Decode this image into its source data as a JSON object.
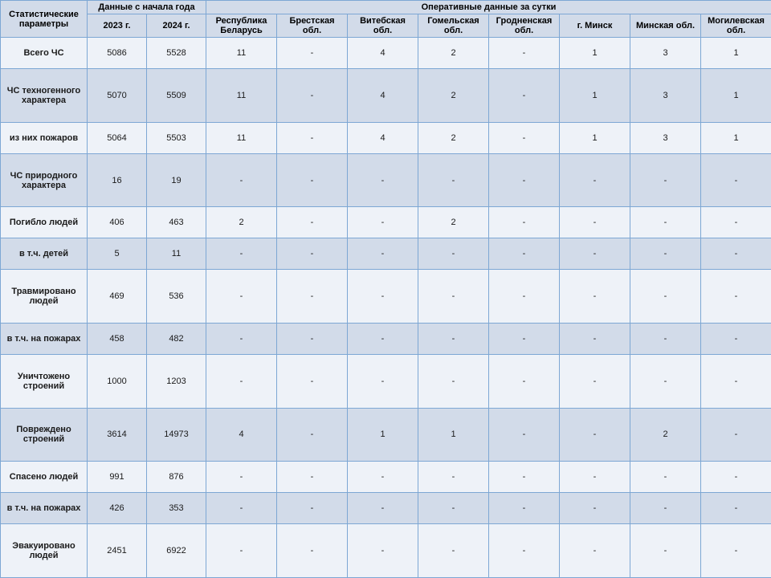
{
  "colors": {
    "border": "#7da7d4",
    "header_bg": "#d2dbe9",
    "row_even_bg": "#eef2f8",
    "row_odd_bg": "#d2dbe9",
    "text": "#1a1a1a"
  },
  "header": {
    "params": "Статистические параметры",
    "year_group": "Данные\nс начала года",
    "year_2023": "2023 г.",
    "year_2024": "2024 г.",
    "daily_group": "Оперативные данные за сутки",
    "regions": [
      "Республика Беларусь",
      "Брестская обл.",
      "Витебская обл.",
      "Гомельская обл.",
      "Гродненская обл.",
      "г. Минск",
      "Минская обл.",
      "Могилевская обл."
    ]
  },
  "rows": [
    {
      "label": "Всего ЧС",
      "y2023": "5086",
      "y2024": "5528",
      "d": [
        "11",
        "-",
        "4",
        "2",
        "-",
        "1",
        "3",
        "1"
      ]
    },
    {
      "label": "ЧС техногенного характера",
      "y2023": "5070",
      "y2024": "5509",
      "d": [
        "11",
        "-",
        "4",
        "2",
        "-",
        "1",
        "3",
        "1"
      ]
    },
    {
      "label": "из них пожаров",
      "y2023": "5064",
      "y2024": "5503",
      "d": [
        "11",
        "-",
        "4",
        "2",
        "-",
        "1",
        "3",
        "1"
      ]
    },
    {
      "label": "ЧС природного характера",
      "y2023": "16",
      "y2024": "19",
      "d": [
        "-",
        "-",
        "-",
        "-",
        "-",
        "-",
        "-",
        "-"
      ]
    },
    {
      "label": "Погибло людей",
      "y2023": "406",
      "y2024": "463",
      "d": [
        "2",
        "-",
        "-",
        "2",
        "-",
        "-",
        "-",
        "-"
      ]
    },
    {
      "label": "в т.ч. детей",
      "y2023": "5",
      "y2024": "11",
      "d": [
        "-",
        "-",
        "-",
        "-",
        "-",
        "-",
        "-",
        "-"
      ]
    },
    {
      "label": "Травмировано людей",
      "y2023": "469",
      "y2024": "536",
      "d": [
        "-",
        "-",
        "-",
        "-",
        "-",
        "-",
        "-",
        "-"
      ]
    },
    {
      "label": "в т.ч. на пожарах",
      "y2023": "458",
      "y2024": "482",
      "d": [
        "-",
        "-",
        "-",
        "-",
        "-",
        "-",
        "-",
        "-"
      ]
    },
    {
      "label": "Уничтожено строений",
      "y2023": "1000",
      "y2024": "1203",
      "d": [
        "-",
        "-",
        "-",
        "-",
        "-",
        "-",
        "-",
        "-"
      ]
    },
    {
      "label": "Повреждено строений",
      "y2023": "3614",
      "y2024": "14973",
      "d": [
        "4",
        "-",
        "1",
        "1",
        "-",
        "-",
        "2",
        "-"
      ]
    },
    {
      "label": "Спасено людей",
      "y2023": "991",
      "y2024": "876",
      "d": [
        "-",
        "-",
        "-",
        "-",
        "-",
        "-",
        "-",
        "-"
      ]
    },
    {
      "label": "в т.ч. на пожарах",
      "y2023": "426",
      "y2024": "353",
      "d": [
        "-",
        "-",
        "-",
        "-",
        "-",
        "-",
        "-",
        "-"
      ]
    },
    {
      "label": "Эвакуировано людей",
      "y2023": "2451",
      "y2024": "6922",
      "d": [
        "-",
        "-",
        "-",
        "-",
        "-",
        "-",
        "-",
        "-"
      ]
    }
  ]
}
